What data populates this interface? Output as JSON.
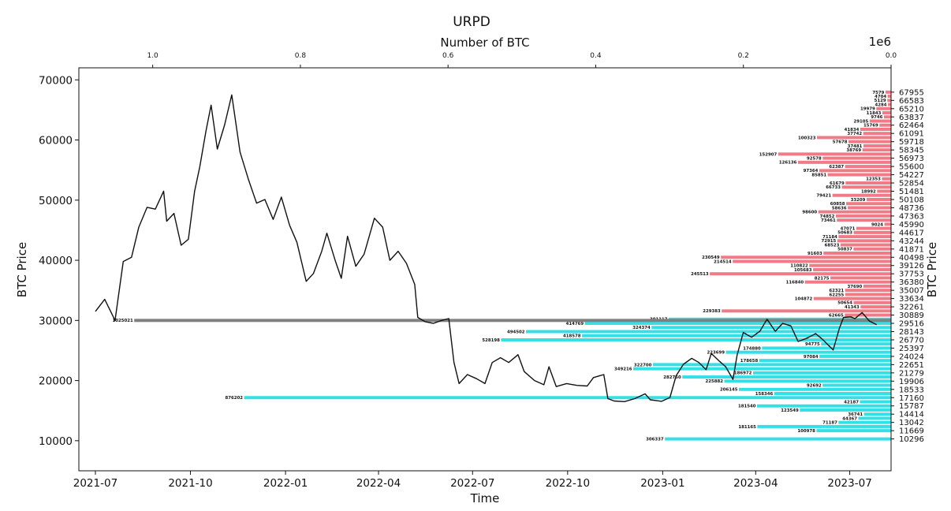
{
  "chart_data": {
    "type": "bar",
    "title": "URPD",
    "xlabel": "Time",
    "ylabel": "BTC Price",
    "ylabel_right": "BTC Price",
    "top_xlabel": "Number of BTC",
    "top_xscale_label": "1e6",
    "ylim": [
      5000,
      72000
    ],
    "y_ticks": [
      10000,
      20000,
      30000,
      40000,
      50000,
      60000,
      70000
    ],
    "y_tick_labels": [
      "10000",
      "20000",
      "30000",
      "40000",
      "50000",
      "60000",
      "70000"
    ],
    "x_range": [
      "2021-06-15",
      "2023-08-10"
    ],
    "x_ticks": [
      "2021-07-01",
      "2021-10-01",
      "2022-01-01",
      "2022-04-01",
      "2022-07-01",
      "2022-10-01",
      "2023-01-01",
      "2023-04-01",
      "2023-07-01"
    ],
    "x_tick_labels": [
      "2021-07",
      "2021-10",
      "2022-01",
      "2022-04",
      "2022-07",
      "2022-10",
      "2023-01",
      "2023-04",
      "2023-07"
    ],
    "top_xlim": [
      1.1,
      0.0
    ],
    "top_ticks": [
      1.0,
      0.8,
      0.6,
      0.4,
      0.2,
      0.0
    ],
    "top_tick_labels": [
      "1.0",
      "0.8",
      "0.6",
      "0.4",
      "0.2",
      "0.0"
    ],
    "current_price": 30000,
    "current_bar": {
      "price": 30000,
      "value": 1025021,
      "label": "1025021"
    },
    "colors": {
      "above": "#f07b86",
      "below": "#33e0e6",
      "current": "#808080",
      "line": "#111111"
    },
    "price_series": {
      "name": "",
      "points": [
        [
          "2021-07-01",
          31500
        ],
        [
          "2021-07-10",
          33500
        ],
        [
          "2021-07-20",
          30000
        ],
        [
          "2021-07-28",
          39800
        ],
        [
          "2021-08-05",
          40500
        ],
        [
          "2021-08-12",
          45500
        ],
        [
          "2021-08-20",
          48800
        ],
        [
          "2021-08-28",
          48500
        ],
        [
          "2021-09-05",
          51500
        ],
        [
          "2021-09-08",
          46500
        ],
        [
          "2021-09-15",
          47800
        ],
        [
          "2021-09-22",
          42500
        ],
        [
          "2021-09-29",
          43500
        ],
        [
          "2021-10-05",
          51500
        ],
        [
          "2021-10-10",
          55500
        ],
        [
          "2021-10-16",
          61500
        ],
        [
          "2021-10-21",
          65800
        ],
        [
          "2021-10-27",
          58500
        ],
        [
          "2021-11-03",
          62500
        ],
        [
          "2021-11-10",
          67500
        ],
        [
          "2021-11-18",
          58000
        ],
        [
          "2021-11-26",
          53500
        ],
        [
          "2021-12-04",
          49500
        ],
        [
          "2021-12-12",
          50100
        ],
        [
          "2021-12-20",
          46800
        ],
        [
          "2021-12-28",
          50500
        ],
        [
          "2022-01-05",
          45800
        ],
        [
          "2022-01-12",
          43000
        ],
        [
          "2022-01-21",
          36500
        ],
        [
          "2022-01-28",
          37800
        ],
        [
          "2022-02-05",
          41500
        ],
        [
          "2022-02-10",
          44500
        ],
        [
          "2022-02-18",
          40000
        ],
        [
          "2022-02-24",
          37000
        ],
        [
          "2022-03-02",
          44000
        ],
        [
          "2022-03-10",
          39000
        ],
        [
          "2022-03-18",
          41000
        ],
        [
          "2022-03-28",
          47000
        ],
        [
          "2022-04-05",
          45500
        ],
        [
          "2022-04-12",
          40000
        ],
        [
          "2022-04-20",
          41500
        ],
        [
          "2022-04-28",
          39500
        ],
        [
          "2022-05-06",
          36000
        ],
        [
          "2022-05-09",
          30500
        ],
        [
          "2022-05-16",
          29800
        ],
        [
          "2022-05-24",
          29500
        ],
        [
          "2022-06-01",
          30000
        ],
        [
          "2022-06-08",
          30300
        ],
        [
          "2022-06-13",
          23000
        ],
        [
          "2022-06-18",
          19500
        ],
        [
          "2022-06-26",
          21000
        ],
        [
          "2022-07-05",
          20300
        ],
        [
          "2022-07-13",
          19500
        ],
        [
          "2022-07-20",
          23000
        ],
        [
          "2022-07-28",
          23800
        ],
        [
          "2022-08-05",
          23000
        ],
        [
          "2022-08-14",
          24300
        ],
        [
          "2022-08-20",
          21500
        ],
        [
          "2022-08-30",
          20000
        ],
        [
          "2022-09-08",
          19300
        ],
        [
          "2022-09-13",
          22300
        ],
        [
          "2022-09-20",
          19000
        ],
        [
          "2022-09-30",
          19500
        ],
        [
          "2022-10-10",
          19200
        ],
        [
          "2022-10-20",
          19100
        ],
        [
          "2022-10-26",
          20500
        ],
        [
          "2022-11-05",
          21000
        ],
        [
          "2022-11-09",
          17000
        ],
        [
          "2022-11-15",
          16600
        ],
        [
          "2022-11-25",
          16500
        ],
        [
          "2022-12-05",
          17000
        ],
        [
          "2022-12-15",
          17800
        ],
        [
          "2022-12-20",
          16800
        ],
        [
          "2022-12-31",
          16550
        ],
        [
          "2023-01-08",
          17200
        ],
        [
          "2023-01-14",
          20800
        ],
        [
          "2023-01-21",
          22700
        ],
        [
          "2023-01-29",
          23700
        ],
        [
          "2023-02-05",
          23000
        ],
        [
          "2023-02-12",
          21800
        ],
        [
          "2023-02-17",
          24500
        ],
        [
          "2023-02-25",
          23200
        ],
        [
          "2023-03-03",
          22300
        ],
        [
          "2023-03-10",
          20200
        ],
        [
          "2023-03-14",
          24200
        ],
        [
          "2023-03-20",
          28000
        ],
        [
          "2023-03-28",
          27200
        ],
        [
          "2023-04-05",
          28200
        ],
        [
          "2023-04-12",
          30200
        ],
        [
          "2023-04-20",
          28200
        ],
        [
          "2023-04-27",
          29500
        ],
        [
          "2023-05-05",
          29100
        ],
        [
          "2023-05-12",
          26500
        ],
        [
          "2023-05-20",
          27000
        ],
        [
          "2023-05-29",
          27800
        ],
        [
          "2023-06-05",
          26800
        ],
        [
          "2023-06-15",
          25100
        ],
        [
          "2023-06-21",
          28700
        ],
        [
          "2023-06-25",
          30500
        ],
        [
          "2023-07-02",
          30600
        ],
        [
          "2023-07-06",
          30300
        ],
        [
          "2023-07-13",
          31300
        ],
        [
          "2023-07-20",
          29900
        ],
        [
          "2023-07-27",
          29300
        ]
      ]
    },
    "bars": [
      {
        "price": 67955,
        "value": 7579,
        "label": "7579"
      },
      {
        "price": 66583,
        "value": 5129,
        "label": "5129"
      },
      {
        "price": 66583,
        "value": 4704,
        "label": "4704",
        "offset": 0.5
      },
      {
        "price": 65210,
        "value": 19979,
        "label": "19979"
      },
      {
        "price": 65210,
        "value": 4284,
        "label": "4284",
        "offset": 0.5
      },
      {
        "price": 63837,
        "value": 9746,
        "label": "9746"
      },
      {
        "price": 63837,
        "value": 11843,
        "label": "11843",
        "offset": 0.5
      },
      {
        "price": 62464,
        "value": 15769,
        "label": "15769"
      },
      {
        "price": 62464,
        "value": 29105,
        "label": "29105",
        "offset": 0.5
      },
      {
        "price": 61091,
        "value": 37742,
        "label": "37742"
      },
      {
        "price": 61091,
        "value": 41834,
        "label": "41834",
        "offset": 0.5
      },
      {
        "price": 59718,
        "value": 57678,
        "label": "57678"
      },
      {
        "price": 59718,
        "value": 100323,
        "label": "100323",
        "offset": 0.5
      },
      {
        "price": 58345,
        "value": 38769,
        "label": "38769"
      },
      {
        "price": 58345,
        "value": 37481,
        "label": "37481",
        "offset": 0.5
      },
      {
        "price": 56973,
        "value": 92578,
        "label": "92578"
      },
      {
        "price": 56973,
        "value": 152907,
        "label": "152907",
        "offset": 0.5
      },
      {
        "price": 55600,
        "value": 62387,
        "label": "62387"
      },
      {
        "price": 55600,
        "value": 126136,
        "label": "126136",
        "offset": 0.5
      },
      {
        "price": 54227,
        "value": 85851,
        "label": "85851"
      },
      {
        "price": 54227,
        "value": 97364,
        "label": "97364",
        "offset": 0.5
      },
      {
        "price": 52854,
        "value": 61679,
        "label": "61679"
      },
      {
        "price": 52854,
        "value": 12353,
        "label": "12353",
        "offset": 0.5
      },
      {
        "price": 51481,
        "value": 18992,
        "label": "18992"
      },
      {
        "price": 51481,
        "value": 66733,
        "label": "66733",
        "offset": 0.5
      },
      {
        "price": 50108,
        "value": 33209,
        "label": "33209"
      },
      {
        "price": 50108,
        "value": 79421,
        "label": "79421",
        "offset": 0.5
      },
      {
        "price": 48736,
        "value": 58636,
        "label": "58636"
      },
      {
        "price": 48736,
        "value": 60858,
        "label": "60858",
        "offset": 0.5
      },
      {
        "price": 47363,
        "value": 74852,
        "label": "74852"
      },
      {
        "price": 47363,
        "value": 98600,
        "label": "98600",
        "offset": 0.5
      },
      {
        "price": 45990,
        "value": 9024,
        "label": "9024"
      },
      {
        "price": 45990,
        "value": 73461,
        "label": "73461",
        "offset": 0.5
      },
      {
        "price": 44617,
        "value": 50683,
        "label": "50683"
      },
      {
        "price": 44617,
        "value": 47071,
        "label": "47071",
        "offset": 0.5
      },
      {
        "price": 43244,
        "value": 72915,
        "label": "72915"
      },
      {
        "price": 43244,
        "value": 71184,
        "label": "71184",
        "offset": 0.5
      },
      {
        "price": 41871,
        "value": 50837,
        "label": "50837"
      },
      {
        "price": 41871,
        "value": 68523,
        "label": "68523",
        "offset": 0.5
      },
      {
        "price": 40498,
        "value": 230549,
        "label": "230549"
      },
      {
        "price": 40498,
        "value": 91603,
        "label": "91603",
        "offset": 0.5
      },
      {
        "price": 39126,
        "value": 110822,
        "label": "110822"
      },
      {
        "price": 39126,
        "value": 214514,
        "label": "214514",
        "offset": 0.5
      },
      {
        "price": 37753,
        "value": 245513,
        "label": "245513"
      },
      {
        "price": 37753,
        "value": 105683,
        "label": "105683",
        "offset": 0.5
      },
      {
        "price": 36380,
        "value": 116840,
        "label": "116840"
      },
      {
        "price": 36380,
        "value": 82175,
        "label": "82175",
        "offset": 0.5
      },
      {
        "price": 35007,
        "value": 62321,
        "label": "62321"
      },
      {
        "price": 35007,
        "value": 37690,
        "label": "37690",
        "offset": 0.5
      },
      {
        "price": 33634,
        "value": 104872,
        "label": "104872"
      },
      {
        "price": 33634,
        "value": 62255,
        "label": "62255",
        "offset": 0.5
      },
      {
        "price": 32261,
        "value": 41343,
        "label": "41343"
      },
      {
        "price": 32261,
        "value": 50654,
        "label": "50654",
        "offset": 0.5
      },
      {
        "price": 30889,
        "value": 62665,
        "label": "62665"
      },
      {
        "price": 30889,
        "value": 229383,
        "label": "229383",
        "offset": 0.5
      },
      {
        "price": 29516,
        "value": 414769,
        "label": "414769"
      },
      {
        "price": 29516,
        "value": 301117,
        "label": "301117",
        "offset": 0.5
      },
      {
        "price": 28143,
        "value": 494502,
        "label": "494502"
      },
      {
        "price": 28143,
        "value": 324374,
        "label": "324374",
        "offset": 0.5
      },
      {
        "price": 26770,
        "value": 528198,
        "label": "528198"
      },
      {
        "price": 26770,
        "value": 418578,
        "label": "418578",
        "offset": 0.5
      },
      {
        "price": 25397,
        "value": 174880,
        "label": "174880"
      },
      {
        "price": 25397,
        "value": 94775,
        "label": "94775",
        "offset": 0.5
      },
      {
        "price": 24024,
        "value": 97084,
        "label": "97084"
      },
      {
        "price": 24024,
        "value": 223699,
        "label": "223699",
        "offset": 0.5
      },
      {
        "price": 22651,
        "value": 322700,
        "label": "322700"
      },
      {
        "price": 22651,
        "value": 178658,
        "label": "178658",
        "offset": 0.5
      },
      {
        "price": 21279,
        "value": 186972,
        "label": "186972"
      },
      {
        "price": 21279,
        "value": 349216,
        "label": "349216",
        "offset": 0.5
      },
      {
        "price": 19906,
        "value": 225882,
        "label": "225882"
      },
      {
        "price": 19906,
        "value": 282750,
        "label": "282750",
        "offset": 0.5
      },
      {
        "price": 18533,
        "value": 206145,
        "label": "206145"
      },
      {
        "price": 18533,
        "value": 92692,
        "label": "92692",
        "offset": 0.5
      },
      {
        "price": 17160,
        "value": 876202,
        "label": "876202"
      },
      {
        "price": 17160,
        "value": 158346,
        "label": "158346",
        "offset": 0.5
      },
      {
        "price": 15787,
        "value": 181540,
        "label": "181540"
      },
      {
        "price": 15787,
        "value": 42187,
        "label": "42187",
        "offset": 0.5
      },
      {
        "price": 14414,
        "value": 36741,
        "label": "36741"
      },
      {
        "price": 14414,
        "value": 123549,
        "label": "123549",
        "offset": 0.5
      },
      {
        "price": 13042,
        "value": 71187,
        "label": "71187"
      },
      {
        "price": 13042,
        "value": 44367,
        "label": "44367",
        "offset": 0.5
      },
      {
        "price": 11669,
        "value": 100978,
        "label": "100978"
      },
      {
        "price": 11669,
        "value": 181165,
        "label": "181165",
        "offset": 0.5
      },
      {
        "price": 10296,
        "value": 306337,
        "label": "306337"
      }
    ],
    "right_tick_prices": [
      67955,
      66583,
      65210,
      63837,
      62464,
      61091,
      59718,
      58345,
      56973,
      55600,
      54227,
      52854,
      51481,
      50108,
      48736,
      47363,
      45990,
      44617,
      43244,
      41871,
      40498,
      39126,
      37753,
      36380,
      35007,
      33634,
      32261,
      30889,
      29516,
      28143,
      26770,
      25397,
      24024,
      22651,
      21279,
      19906,
      18533,
      17160,
      15787,
      14414,
      13042,
      11669,
      10296
    ],
    "right_tick_labels": [
      "67955",
      "66583",
      "65210",
      "63837",
      "62464",
      "61091",
      "59718",
      "58345",
      "56973",
      "55600",
      "54227",
      "52854",
      "51481",
      "50108",
      "48736",
      "47363",
      "45990",
      "44617",
      "43244",
      "41871",
      "40498",
      "39126",
      "37753",
      "36380",
      "35007",
      "33634",
      "32261",
      "30889",
      "29516",
      "28143",
      "26770",
      "25397",
      "24024",
      "22651",
      "21279",
      "19906",
      "18533",
      "17160",
      "15787",
      "14414",
      "13042",
      "11669",
      "10296"
    ],
    "grid": false,
    "legend": "none"
  }
}
